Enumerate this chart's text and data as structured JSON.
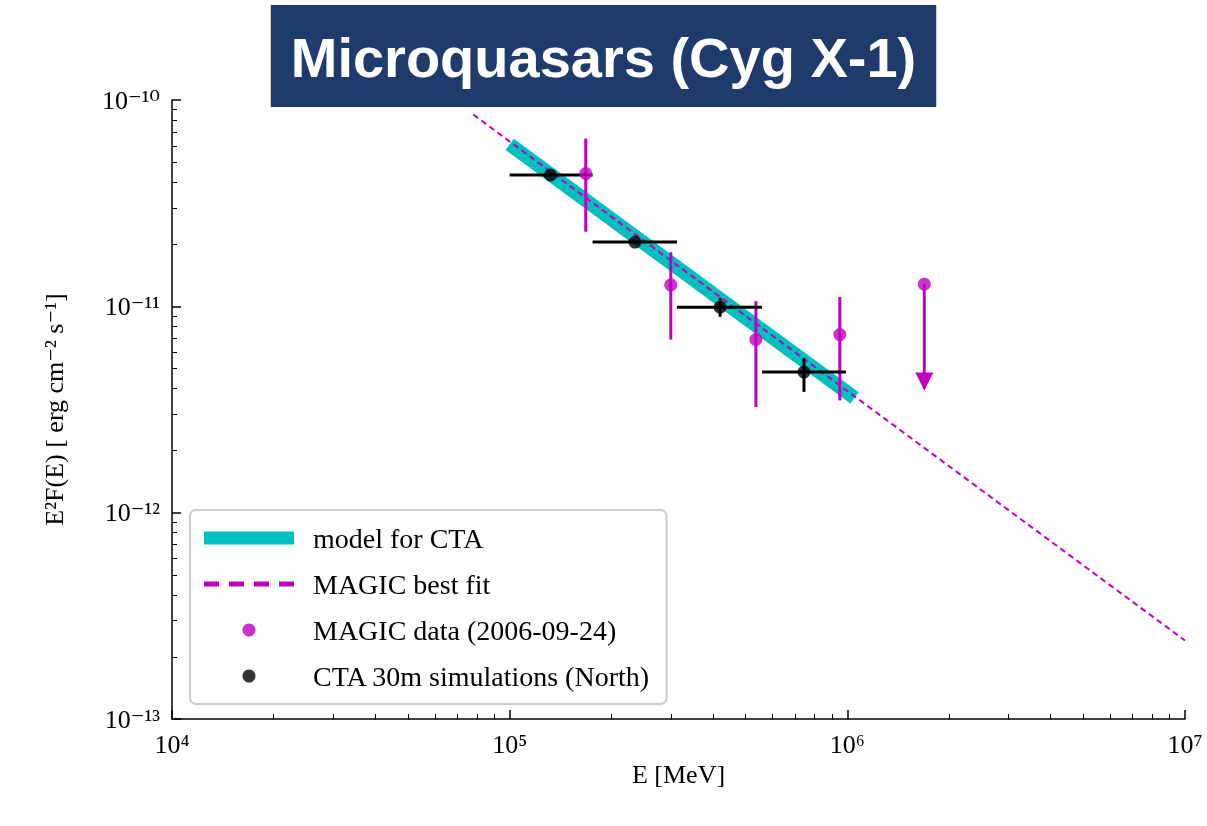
{
  "chart_data": {
    "type": "scatter",
    "title": "Microquasars (Cyg X-1)",
    "xlabel": "E [MeV]",
    "ylabel": "E²F(E) [ erg cm⁻² s⁻¹]",
    "log": "xy",
    "xlim": [
      10000,
      10000000
    ],
    "ylim": [
      1e-13,
      1e-10
    ],
    "xticks": [
      {
        "value": 10000,
        "label": "10⁴"
      },
      {
        "value": 100000,
        "label": "10⁵"
      },
      {
        "value": 1000000,
        "label": "10⁶"
      },
      {
        "value": 10000000,
        "label": "10⁷"
      }
    ],
    "yticks": [
      {
        "value": 1e-13,
        "label": "10⁻¹³"
      },
      {
        "value": 1e-12,
        "label": "10⁻¹²"
      },
      {
        "value": 1e-11,
        "label": "10⁻¹¹"
      },
      {
        "value": 1e-10,
        "label": "10⁻¹⁰"
      }
    ],
    "grid": false,
    "legend": "bottom left",
    "series": [
      {
        "name": "model for CTA",
        "type": "line",
        "color": "#00bfbf",
        "line_style": "solid",
        "marker": "none",
        "x": [
          100000,
          1050000
        ],
        "values": [
          6.1e-11,
          3.6e-12
        ]
      },
      {
        "name": "MAGIC best fit",
        "type": "line",
        "color": "#bf00bf",
        "line_style": "dashed",
        "marker": "none",
        "x": [
          78000,
          10000000
        ],
        "values": [
          8.5e-11,
          2.4e-13
        ]
      },
      {
        "name": "MAGIC data (2006-09-24)",
        "color": "#bf00bf",
        "marker": "circle",
        "x": [
          168000,
          300000,
          536000,
          950000,
          1690000
        ],
        "values": [
          4.4e-11,
          1.27e-11,
          6.9e-12,
          7.3e-12,
          1.28e-11
        ],
        "errors": [
          [
            2.3e-11,
            6.5e-11
          ],
          [
            6.9e-12,
            1.83e-11
          ],
          [
            3.25e-12,
            1.06e-11
          ],
          [
            3.5e-12,
            1.11e-11
          ],
          [
            4e-12,
            1.28e-11
          ]
        ]
      },
      {
        "name": "CTA 30m simulations (North)",
        "color": "#000000",
        "marker": "circle",
        "x": [
          132000,
          235000,
          420000,
          744000
        ],
        "values": [
          4.33e-11,
          2.05e-11,
          9.9e-12,
          4.8e-12
        ],
        "errors": [
          null,
          null,
          [
            8.9e-12,
            1.1e-11
          ],
          [
            3.85e-12,
            5.6e-12
          ]
        ],
        "xerrors": [
          [
            100000,
            176000
          ],
          [
            176000,
            313000
          ],
          [
            313000,
            559000
          ],
          [
            559000,
            990000
          ]
        ]
      }
    ]
  }
}
